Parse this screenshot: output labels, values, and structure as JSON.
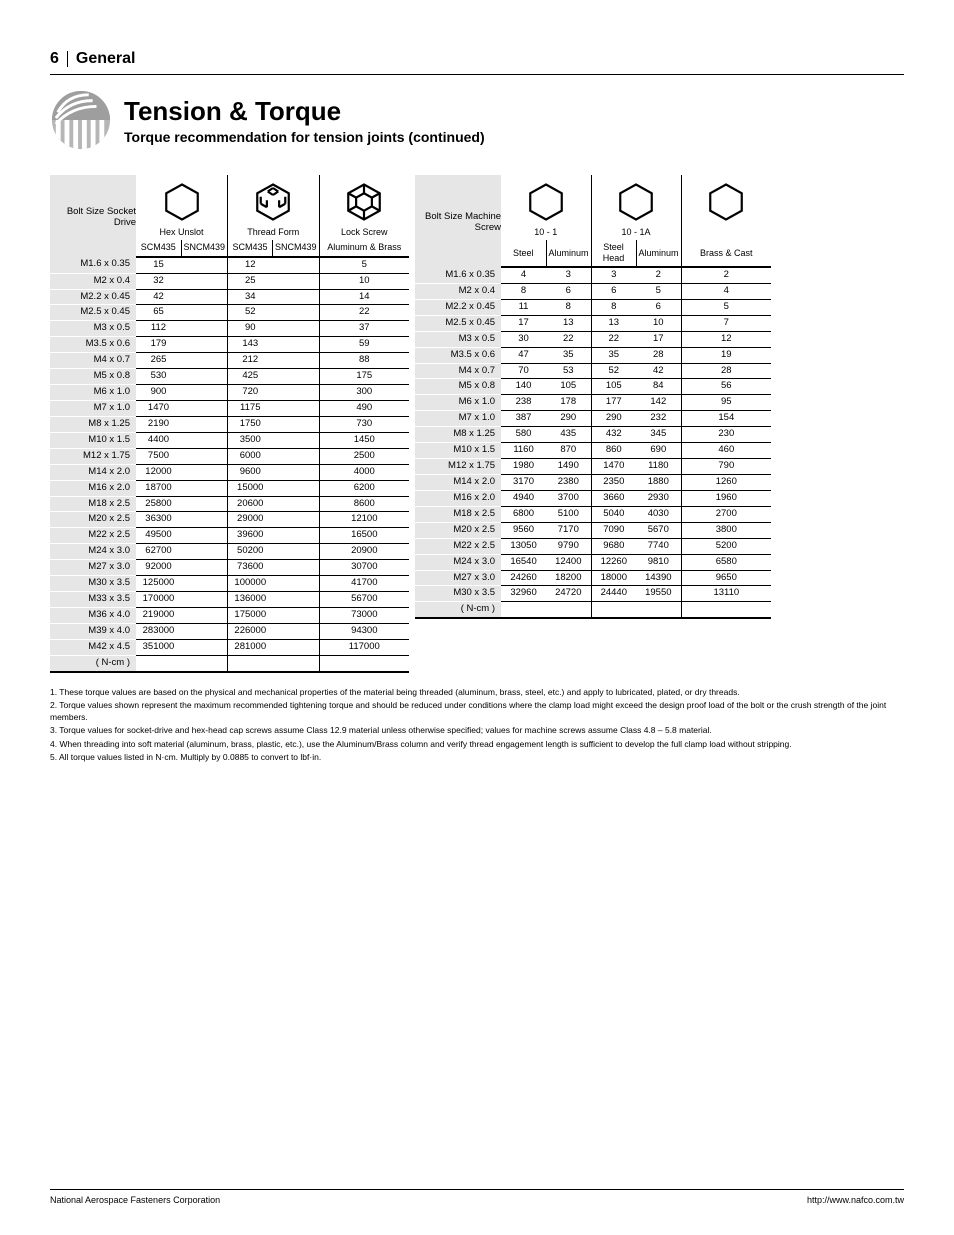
{
  "page": {
    "number": "6",
    "title_suffix": "General",
    "footer_brand": "National Aerospace Fasteners Corporation",
    "footer_right": "http://www.nafco.com.tw"
  },
  "section": {
    "title": "Tension & Torque",
    "subtitle": "Torque recommendation for tension joints (continued)"
  },
  "left": {
    "first_header": "Bolt Size Socket Drive",
    "groups": [
      {
        "icon": "hex",
        "label": "Hex Unslot",
        "col_a": "SCM435",
        "col_b": "SNCM439"
      },
      {
        "icon": "hex3",
        "label": "Thread Form",
        "col_a": "SCM435",
        "col_b": "SNCM439"
      },
      {
        "icon": "hex6",
        "label": "Lock Screw",
        "col_a": "Aluminum & Brass",
        "col_b": ""
      }
    ],
    "rows": [
      [
        "M1.6 x 0.35",
        "15",
        "",
        "12",
        "",
        "5"
      ],
      [
        "M2 x 0.4",
        "32",
        "",
        "25",
        "",
        "10"
      ],
      [
        "M2.2 x 0.45",
        "42",
        "",
        "34",
        "",
        "14"
      ],
      [
        "M2.5 x 0.45",
        "65",
        "",
        "52",
        "",
        "22"
      ],
      [
        "M3 x 0.5",
        "112",
        "",
        "90",
        "",
        "37"
      ],
      [
        "M3.5 x 0.6",
        "179",
        "",
        "143",
        "",
        "59"
      ],
      [
        "M4 x 0.7",
        "265",
        "",
        "212",
        "",
        "88"
      ],
      [
        "M5 x 0.8",
        "530",
        "",
        "425",
        "",
        "175"
      ],
      [
        "M6 x 1.0",
        "900",
        "",
        "720",
        "",
        "300"
      ],
      [
        "M7 x 1.0",
        "1470",
        "",
        "1175",
        "",
        "490"
      ],
      [
        "M8 x 1.25",
        "2190",
        "",
        "1750",
        "",
        "730"
      ],
      [
        "M10 x 1.5",
        "4400",
        "",
        "3500",
        "",
        "1450"
      ],
      [
        "M12 x 1.75",
        "7500",
        "",
        "6000",
        "",
        "2500"
      ],
      [
        "M14 x 2.0",
        "12000",
        "",
        "9600",
        "",
        "4000"
      ],
      [
        "M16 x 2.0",
        "18700",
        "",
        "15000",
        "",
        "6200"
      ],
      [
        "M18 x 2.5",
        "25800",
        "",
        "20600",
        "",
        "8600"
      ],
      [
        "M20 x 2.5",
        "36300",
        "",
        "29000",
        "",
        "12100"
      ],
      [
        "M22 x 2.5",
        "49500",
        "",
        "39600",
        "",
        "16500"
      ],
      [
        "M24 x 3.0",
        "62700",
        "",
        "50200",
        "",
        "20900"
      ],
      [
        "M27 x 3.0",
        "92000",
        "",
        "73600",
        "",
        "30700"
      ],
      [
        "M30 x 3.5",
        "125000",
        "",
        "100000",
        "",
        "41700"
      ],
      [
        "M33 x 3.5",
        "170000",
        "",
        "136000",
        "",
        "56700"
      ],
      [
        "M36 x 4.0",
        "219000",
        "",
        "175000",
        "",
        "73000"
      ],
      [
        "M39 x 4.0",
        "283000",
        "",
        "226000",
        "",
        "94300"
      ],
      [
        "M42 x 4.5",
        "351000",
        "",
        "281000",
        "",
        "117000"
      ],
      [
        "( N-cm )",
        "",
        "",
        "",
        "",
        ""
      ]
    ]
  },
  "right": {
    "first_header": "Bolt Size Machine Screw",
    "groups": [
      {
        "icon": "hex",
        "label": "10 - 1",
        "col_a": "Steel",
        "col_b": "Aluminum"
      },
      {
        "icon": "hex",
        "label": "10 - 1A",
        "col_a": "Steel Head",
        "col_b": "Aluminum"
      },
      {
        "icon": "hex",
        "label": "",
        "col_a": "Brass & Cast",
        "col_b": ""
      }
    ],
    "rows": [
      [
        "M1.6 x 0.35",
        "4",
        "3",
        "3",
        "2",
        "2"
      ],
      [
        "M2 x 0.4",
        "8",
        "6",
        "6",
        "5",
        "4"
      ],
      [
        "M2.2 x 0.45",
        "11",
        "8",
        "8",
        "6",
        "5"
      ],
      [
        "M2.5 x 0.45",
        "17",
        "13",
        "13",
        "10",
        "7"
      ],
      [
        "M3 x 0.5",
        "30",
        "22",
        "22",
        "17",
        "12"
      ],
      [
        "M3.5 x 0.6",
        "47",
        "35",
        "35",
        "28",
        "19"
      ],
      [
        "M4 x 0.7",
        "70",
        "53",
        "52",
        "42",
        "28"
      ],
      [
        "M5 x 0.8",
        "140",
        "105",
        "105",
        "84",
        "56"
      ],
      [
        "M6 x 1.0",
        "238",
        "178",
        "177",
        "142",
        "95"
      ],
      [
        "M7 x 1.0",
        "387",
        "290",
        "290",
        "232",
        "154"
      ],
      [
        "M8 x 1.25",
        "580",
        "435",
        "432",
        "345",
        "230"
      ],
      [
        "M10 x 1.5",
        "1160",
        "870",
        "860",
        "690",
        "460"
      ],
      [
        "M12 x 1.75",
        "1980",
        "1490",
        "1470",
        "1180",
        "790"
      ],
      [
        "M14 x 2.0",
        "3170",
        "2380",
        "2350",
        "1880",
        "1260"
      ],
      [
        "M16 x 2.0",
        "4940",
        "3700",
        "3660",
        "2930",
        "1960"
      ],
      [
        "M18 x 2.5",
        "6800",
        "5100",
        "5040",
        "4030",
        "2700"
      ],
      [
        "M20 x 2.5",
        "9560",
        "7170",
        "7090",
        "5670",
        "3800"
      ],
      [
        "M22 x 2.5",
        "13050",
        "9790",
        "9680",
        "7740",
        "5200"
      ],
      [
        "M24 x 3.0",
        "16540",
        "12400",
        "12260",
        "9810",
        "6580"
      ],
      [
        "M27 x 3.0",
        "24260",
        "18200",
        "18000",
        "14390",
        "9650"
      ],
      [
        "M30 x 3.5",
        "32960",
        "24720",
        "24440",
        "19550",
        "13110"
      ],
      [
        "( N-cm )",
        "",
        "",
        "",
        "",
        ""
      ]
    ]
  },
  "footnotes": [
    "1. These torque values are based on the physical and mechanical properties of the material being threaded (aluminum, brass, steel, etc.) and apply to lubricated, plated, or dry threads.",
    "2. Torque values shown represent the maximum recommended tightening torque and should be reduced under conditions where the clamp load might exceed the design proof load of the bolt or the crush strength of the joint members.",
    "3. Torque values for socket-drive and hex-head cap screws assume Class 12.9 material unless otherwise specified; values for machine screws assume Class 4.8 – 5.8 material.",
    "4. When threading into soft material (aluminum, brass, plastic, etc.), use the Aluminum/Brass column and verify thread engagement length is sufficient to develop the full clamp load without stripping.",
    "5. All torque values listed in N·cm. Multiply by 0.0885 to convert to lbf·in."
  ]
}
